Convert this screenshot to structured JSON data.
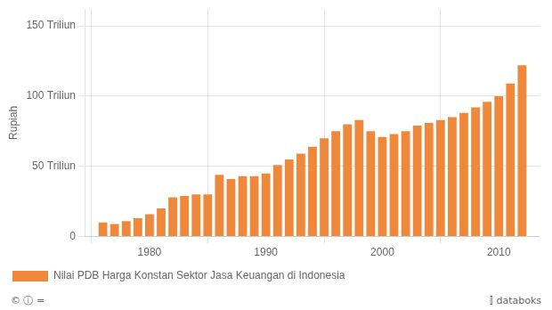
{
  "chart_data": {
    "type": "bar",
    "x": [
      1976,
      1977,
      1978,
      1979,
      1980,
      1981,
      1982,
      1983,
      1984,
      1985,
      1986,
      1987,
      1988,
      1989,
      1990,
      1991,
      1992,
      1993,
      1994,
      1995,
      1996,
      1997,
      1998,
      1999,
      2000,
      2001,
      2002,
      2003,
      2004,
      2005,
      2006,
      2007,
      2008,
      2009,
      2010,
      2011,
      2012
    ],
    "series": [
      {
        "name": "Nilai PDB Harga Konstan Sektor Jasa Keuangan di Indonesia",
        "color": "#f0883c",
        "values": [
          10,
          9,
          11,
          13,
          16,
          20,
          28,
          29,
          30,
          30,
          44,
          41,
          43,
          43,
          45,
          51,
          55,
          59,
          64,
          70,
          75,
          80,
          83,
          75,
          71,
          73,
          75,
          79,
          81,
          83,
          85,
          88,
          92,
          96,
          100,
          109,
          122
        ]
      }
    ],
    "y_label": "Rupiah",
    "xlim": [
      1974.5,
      2013.5
    ],
    "xticks": [
      1980,
      1990,
      2000,
      2010
    ],
    "ylim": [
      0,
      162
    ],
    "yticks": [
      0,
      {
        "value": 50,
        "label": "50 Triliun"
      },
      {
        "value": 100,
        "label": "100 Triliun"
      },
      {
        "value": 150,
        "label": "150 Triliun"
      }
    ],
    "grid": true,
    "legend": "bottom",
    "annotations": [
      "© ⓘ =",
      "⫿ databoks"
    ]
  }
}
